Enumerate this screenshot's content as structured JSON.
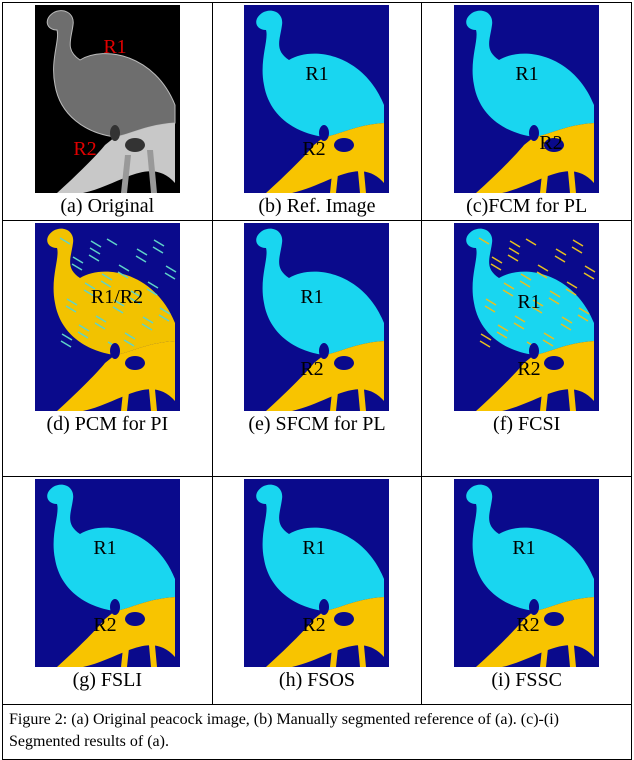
{
  "figure": {
    "panels": [
      {
        "caption": "(a) Original",
        "labels": [
          "R1",
          "R2"
        ]
      },
      {
        "caption": "(b) Ref. Image",
        "labels": [
          "R1",
          "R2"
        ]
      },
      {
        "caption": "(c)FCM for PL",
        "labels": [
          "R1",
          "R2"
        ]
      },
      {
        "caption": "(d) PCM for PI",
        "labels": [
          "R1/R2"
        ]
      },
      {
        "caption": "(e) SFCM for PL",
        "labels": [
          "R1",
          "R2"
        ]
      },
      {
        "caption": "(f) FCSI",
        "labels": [
          "R1",
          "R2"
        ]
      },
      {
        "caption": "(g) FSLI",
        "labels": [
          "R1",
          "R2"
        ]
      },
      {
        "caption": "(h) FSOS",
        "labels": [
          "R1",
          "R2"
        ]
      },
      {
        "caption": "(i) FSSC",
        "labels": [
          "R1",
          "R2"
        ]
      }
    ],
    "caption": "Figure 2: (a) Original peacock image, (b) Manually segmented reference of (a). (c)-(i) Segmented results of (a)."
  }
}
